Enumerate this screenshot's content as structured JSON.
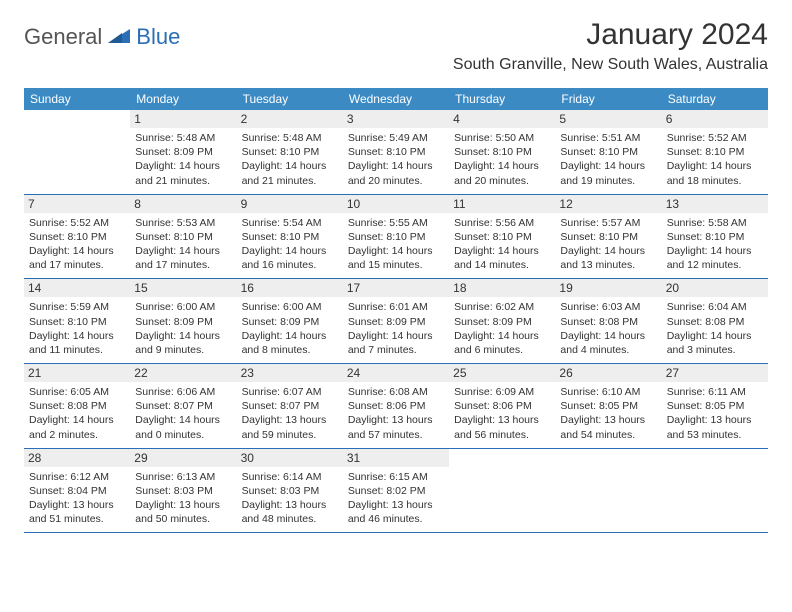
{
  "logo": {
    "text1": "General",
    "text2": "Blue",
    "triangle_color": "#2a6fb5"
  },
  "title": "January 2024",
  "location": "South Granville, New South Wales, Australia",
  "colors": {
    "header_bg": "#3b8ac4",
    "header_text": "#ffffff",
    "daynum_bg": "#eeeeee",
    "week_border": "#2a6fb5",
    "text": "#333333",
    "background": "#ffffff"
  },
  "fonts": {
    "title_pt": 30,
    "location_pt": 16,
    "dow_pt": 12,
    "daynum_pt": 12,
    "body_pt": 10.5
  },
  "days_of_week": [
    "Sunday",
    "Monday",
    "Tuesday",
    "Wednesday",
    "Thursday",
    "Friday",
    "Saturday"
  ],
  "first_day_col": 1,
  "weeks": 5,
  "days": [
    {
      "n": 1,
      "sr": "5:48 AM",
      "ss": "8:09 PM",
      "dl": "14 hours and 21 minutes."
    },
    {
      "n": 2,
      "sr": "5:48 AM",
      "ss": "8:10 PM",
      "dl": "14 hours and 21 minutes."
    },
    {
      "n": 3,
      "sr": "5:49 AM",
      "ss": "8:10 PM",
      "dl": "14 hours and 20 minutes."
    },
    {
      "n": 4,
      "sr": "5:50 AM",
      "ss": "8:10 PM",
      "dl": "14 hours and 20 minutes."
    },
    {
      "n": 5,
      "sr": "5:51 AM",
      "ss": "8:10 PM",
      "dl": "14 hours and 19 minutes."
    },
    {
      "n": 6,
      "sr": "5:52 AM",
      "ss": "8:10 PM",
      "dl": "14 hours and 18 minutes."
    },
    {
      "n": 7,
      "sr": "5:52 AM",
      "ss": "8:10 PM",
      "dl": "14 hours and 17 minutes."
    },
    {
      "n": 8,
      "sr": "5:53 AM",
      "ss": "8:10 PM",
      "dl": "14 hours and 17 minutes."
    },
    {
      "n": 9,
      "sr": "5:54 AM",
      "ss": "8:10 PM",
      "dl": "14 hours and 16 minutes."
    },
    {
      "n": 10,
      "sr": "5:55 AM",
      "ss": "8:10 PM",
      "dl": "14 hours and 15 minutes."
    },
    {
      "n": 11,
      "sr": "5:56 AM",
      "ss": "8:10 PM",
      "dl": "14 hours and 14 minutes."
    },
    {
      "n": 12,
      "sr": "5:57 AM",
      "ss": "8:10 PM",
      "dl": "14 hours and 13 minutes."
    },
    {
      "n": 13,
      "sr": "5:58 AM",
      "ss": "8:10 PM",
      "dl": "14 hours and 12 minutes."
    },
    {
      "n": 14,
      "sr": "5:59 AM",
      "ss": "8:10 PM",
      "dl": "14 hours and 11 minutes."
    },
    {
      "n": 15,
      "sr": "6:00 AM",
      "ss": "8:09 PM",
      "dl": "14 hours and 9 minutes."
    },
    {
      "n": 16,
      "sr": "6:00 AM",
      "ss": "8:09 PM",
      "dl": "14 hours and 8 minutes."
    },
    {
      "n": 17,
      "sr": "6:01 AM",
      "ss": "8:09 PM",
      "dl": "14 hours and 7 minutes."
    },
    {
      "n": 18,
      "sr": "6:02 AM",
      "ss": "8:09 PM",
      "dl": "14 hours and 6 minutes."
    },
    {
      "n": 19,
      "sr": "6:03 AM",
      "ss": "8:08 PM",
      "dl": "14 hours and 4 minutes."
    },
    {
      "n": 20,
      "sr": "6:04 AM",
      "ss": "8:08 PM",
      "dl": "14 hours and 3 minutes."
    },
    {
      "n": 21,
      "sr": "6:05 AM",
      "ss": "8:08 PM",
      "dl": "14 hours and 2 minutes."
    },
    {
      "n": 22,
      "sr": "6:06 AM",
      "ss": "8:07 PM",
      "dl": "14 hours and 0 minutes."
    },
    {
      "n": 23,
      "sr": "6:07 AM",
      "ss": "8:07 PM",
      "dl": "13 hours and 59 minutes."
    },
    {
      "n": 24,
      "sr": "6:08 AM",
      "ss": "8:06 PM",
      "dl": "13 hours and 57 minutes."
    },
    {
      "n": 25,
      "sr": "6:09 AM",
      "ss": "8:06 PM",
      "dl": "13 hours and 56 minutes."
    },
    {
      "n": 26,
      "sr": "6:10 AM",
      "ss": "8:05 PM",
      "dl": "13 hours and 54 minutes."
    },
    {
      "n": 27,
      "sr": "6:11 AM",
      "ss": "8:05 PM",
      "dl": "13 hours and 53 minutes."
    },
    {
      "n": 28,
      "sr": "6:12 AM",
      "ss": "8:04 PM",
      "dl": "13 hours and 51 minutes."
    },
    {
      "n": 29,
      "sr": "6:13 AM",
      "ss": "8:03 PM",
      "dl": "13 hours and 50 minutes."
    },
    {
      "n": 30,
      "sr": "6:14 AM",
      "ss": "8:03 PM",
      "dl": "13 hours and 48 minutes."
    },
    {
      "n": 31,
      "sr": "6:15 AM",
      "ss": "8:02 PM",
      "dl": "13 hours and 46 minutes."
    }
  ],
  "labels": {
    "sunrise": "Sunrise:",
    "sunset": "Sunset:",
    "daylight": "Daylight:"
  }
}
